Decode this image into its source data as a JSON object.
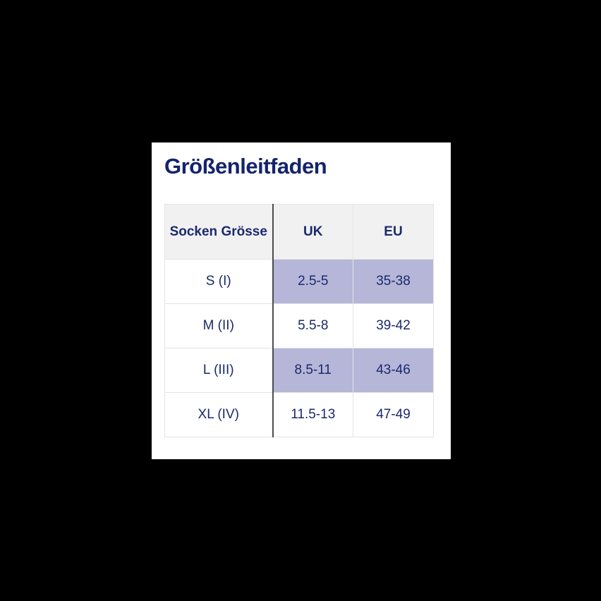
{
  "card": {
    "title": "Größenleitfaden"
  },
  "table": {
    "headers": [
      {
        "label": "Socken Grösse"
      },
      {
        "label": "UK"
      },
      {
        "label": "EU"
      }
    ],
    "rows": [
      {
        "size": "S (I)",
        "uk": "2.5-5",
        "eu": "35-38",
        "highlighted": true
      },
      {
        "size": "M (II)",
        "uk": "5.5-8",
        "eu": "39-42",
        "highlighted": false
      },
      {
        "size": "L (III)",
        "uk": "8.5-11",
        "eu": "43-46",
        "highlighted": true
      },
      {
        "size": "XL (IV)",
        "uk": "11.5-13",
        "eu": "47-49",
        "highlighted": false
      }
    ]
  },
  "colors": {
    "page_bg": "#000000",
    "card_bg": "#ffffff",
    "title_navy": "#14246b",
    "cell_text_navy": "#1b2a6b",
    "header_bg": "#f1f1f2",
    "highlight_lavender": "#b5b6d8",
    "border_light": "#e4e4e7",
    "border_dark": "#4b4b51"
  }
}
